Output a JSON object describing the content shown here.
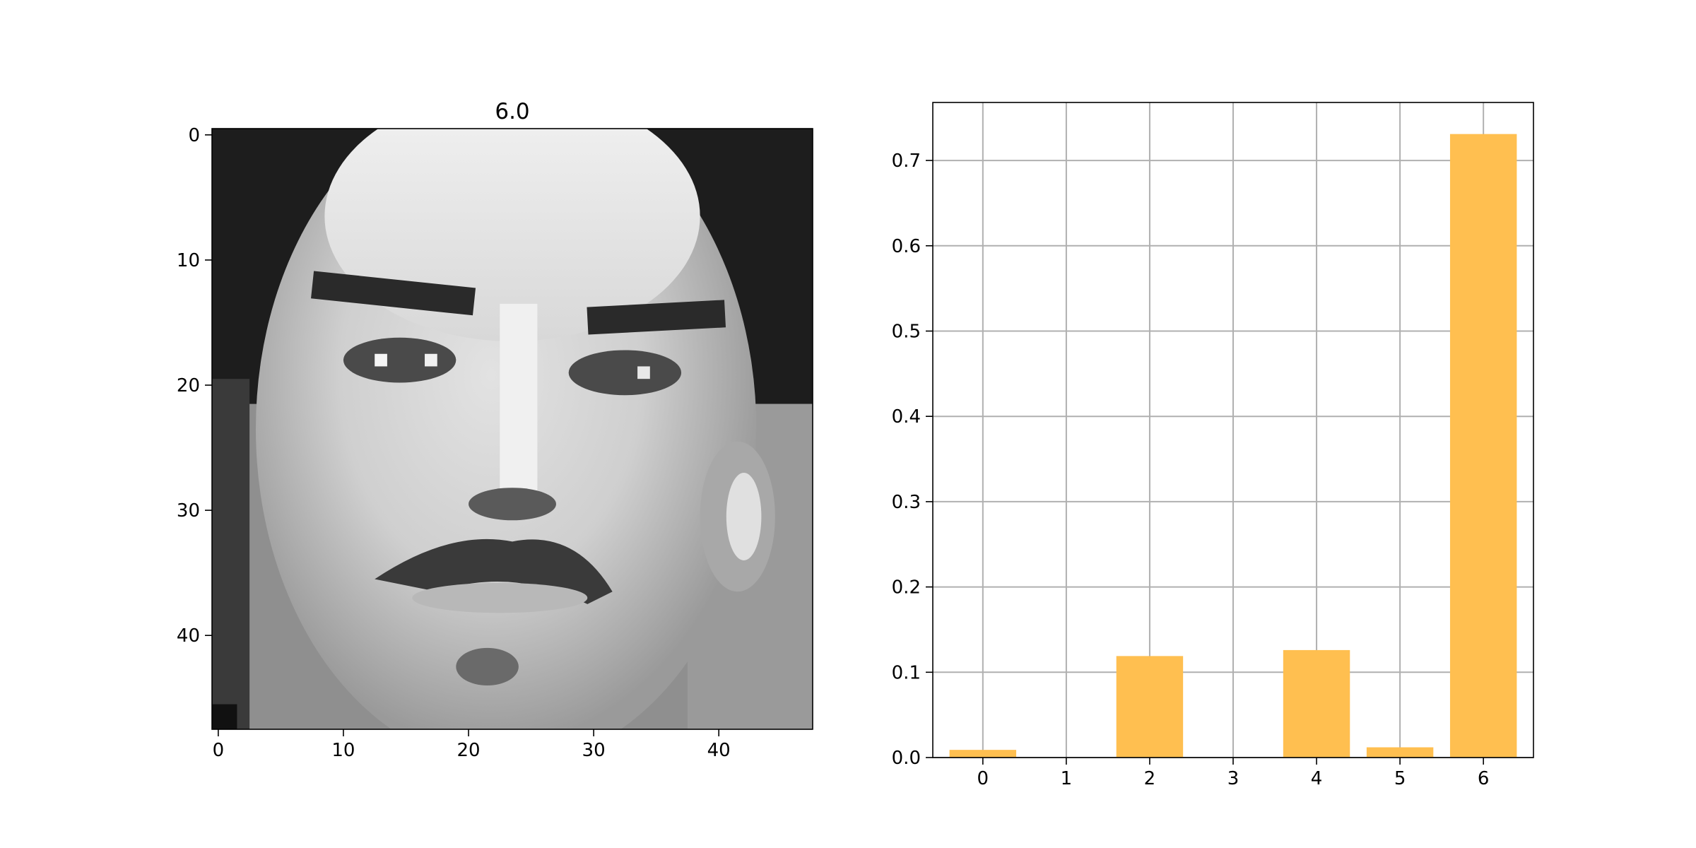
{
  "figure": {
    "background": "#ffffff"
  },
  "chart_data": [
    {
      "type": "heatmap",
      "title": "6.0",
      "colormap": "gray",
      "image_shape": [
        48,
        48
      ],
      "x_ticks": [
        0,
        10,
        20,
        30,
        40
      ],
      "y_ticks": [
        0,
        10,
        20,
        30,
        40
      ],
      "grid": false
    },
    {
      "type": "bar",
      "title": "",
      "categories": [
        "0",
        "1",
        "2",
        "3",
        "4",
        "5",
        "6"
      ],
      "values": [
        0.009,
        0.0,
        0.119,
        0.0,
        0.126,
        0.012,
        0.731
      ],
      "ylim": [
        0,
        0.768
      ],
      "y_ticks": [
        "0.0",
        "0.1",
        "0.2",
        "0.3",
        "0.4",
        "0.5",
        "0.6",
        "0.7"
      ],
      "bar_color": "#ffbf50",
      "grid": true,
      "grid_color": "#b0b0b0"
    }
  ]
}
